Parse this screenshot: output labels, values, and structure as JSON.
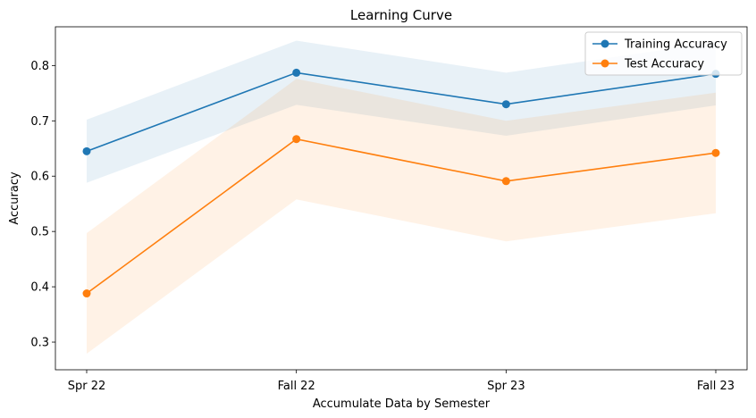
{
  "chart_data": {
    "type": "line",
    "title": "Learning Curve",
    "xlabel": "Accumulate Data by Semester",
    "ylabel": "Accuracy",
    "categories": [
      "Spr 22",
      "Fall 22",
      "Spr 23",
      "Fall 23"
    ],
    "ylim": [
      0.25,
      0.87
    ],
    "yticks": [
      0.3,
      0.4,
      0.5,
      0.6,
      0.7,
      0.8
    ],
    "ytick_labels": [
      "0.3",
      "0.4",
      "0.5",
      "0.6",
      "0.7",
      "0.8"
    ],
    "grid": false,
    "legend_position": "top-right",
    "series": [
      {
        "name": "Training Accuracy",
        "color": "#1f77b4",
        "values": [
          0.645,
          0.787,
          0.73,
          0.785
        ],
        "band_upper": [
          0.702,
          0.845,
          0.787,
          0.842
        ],
        "band_lower": [
          0.588,
          0.729,
          0.673,
          0.728
        ]
      },
      {
        "name": "Test Accuracy",
        "color": "#ff7f0e",
        "values": [
          0.388,
          0.667,
          0.591,
          0.642
        ],
        "band_upper": [
          0.497,
          0.776,
          0.7,
          0.751
        ],
        "band_lower": [
          0.279,
          0.558,
          0.482,
          0.533
        ]
      }
    ]
  }
}
